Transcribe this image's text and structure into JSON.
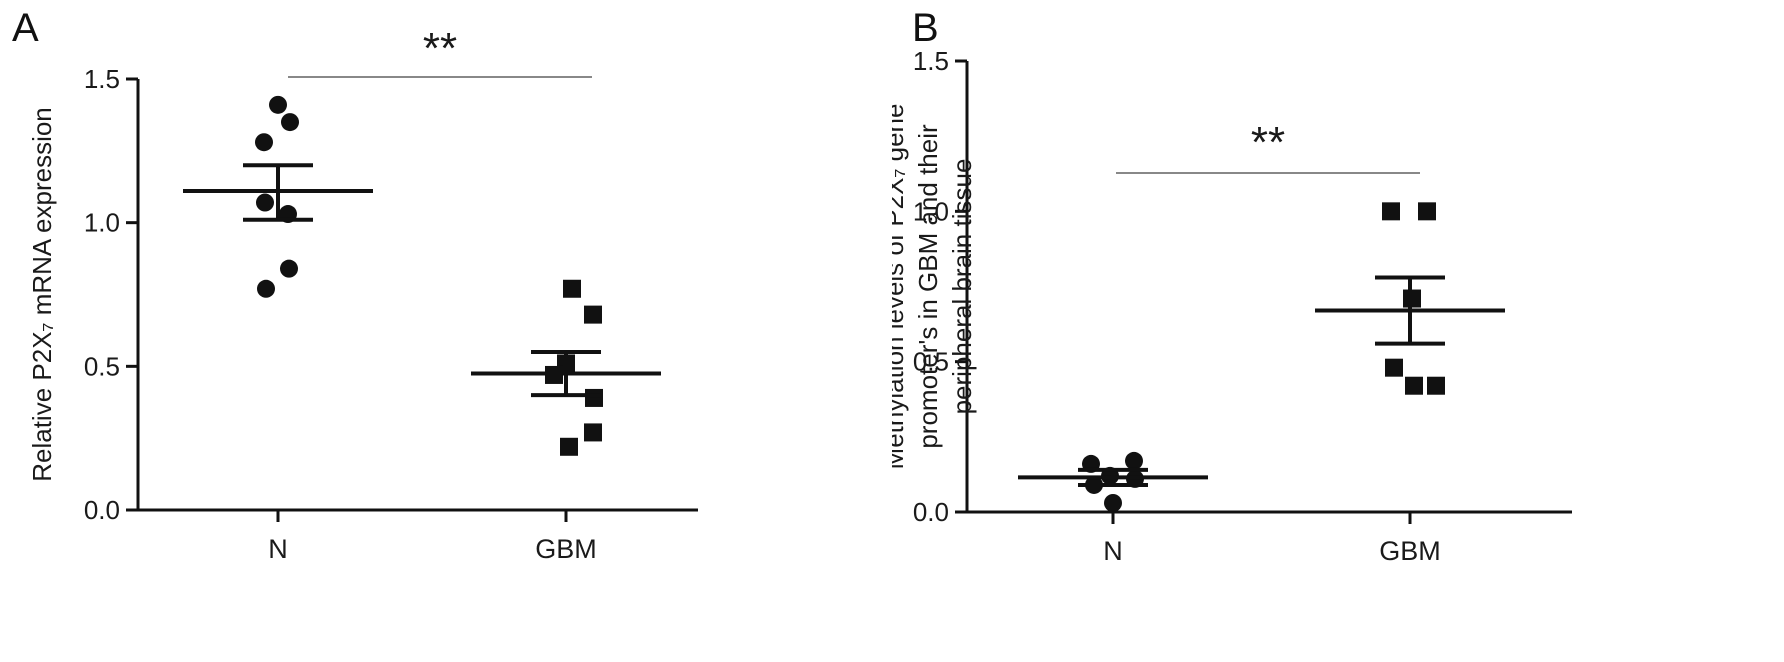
{
  "chart_data": [
    {
      "type": "scatter",
      "panel_label": "A",
      "ylabel_lines": [
        "Relative P2X₇ mRNA expression"
      ],
      "categories": [
        "N",
        "GBM"
      ],
      "ylim": [
        0,
        1.5
      ],
      "yticks": [
        "0.0",
        "0.5",
        "1.0",
        "1.5"
      ],
      "grid": false,
      "significance": "**",
      "series": [
        {
          "category": "N",
          "marker": "circle",
          "values": [
            1.41,
            1.35,
            1.28,
            1.07,
            1.03,
            0.84,
            0.77
          ],
          "mean": 1.11,
          "sem_low": 1.01,
          "sem_high": 1.2
        },
        {
          "category": "GBM",
          "marker": "square",
          "values": [
            0.77,
            0.68,
            0.51,
            0.47,
            0.39,
            0.27,
            0.22
          ],
          "mean": 0.475,
          "sem_low": 0.4,
          "sem_high": 0.55
        }
      ]
    },
    {
      "type": "scatter",
      "panel_label": "B",
      "ylabel_lines": [
        "Methylation levels of P2X₇ gene",
        "promoter's in GBM and their",
        "peripheral brain tissue"
      ],
      "categories": [
        "N",
        "GBM"
      ],
      "ylim": [
        0,
        1.5
      ],
      "yticks": [
        "0.0",
        "0.5",
        "1.0",
        "1.5"
      ],
      "grid": false,
      "significance": "**",
      "series": [
        {
          "category": "N",
          "marker": "circle",
          "values": [
            0.16,
            0.12,
            0.17,
            0.11,
            0.09,
            0.03
          ],
          "mean": 0.115,
          "sem_low": 0.09,
          "sem_high": 0.14
        },
        {
          "category": "GBM",
          "marker": "square",
          "values": [
            1.0,
            1.0,
            0.71,
            0.48,
            0.42,
            0.42
          ],
          "mean": 0.67,
          "sem_low": 0.56,
          "sem_high": 0.78
        }
      ]
    }
  ]
}
